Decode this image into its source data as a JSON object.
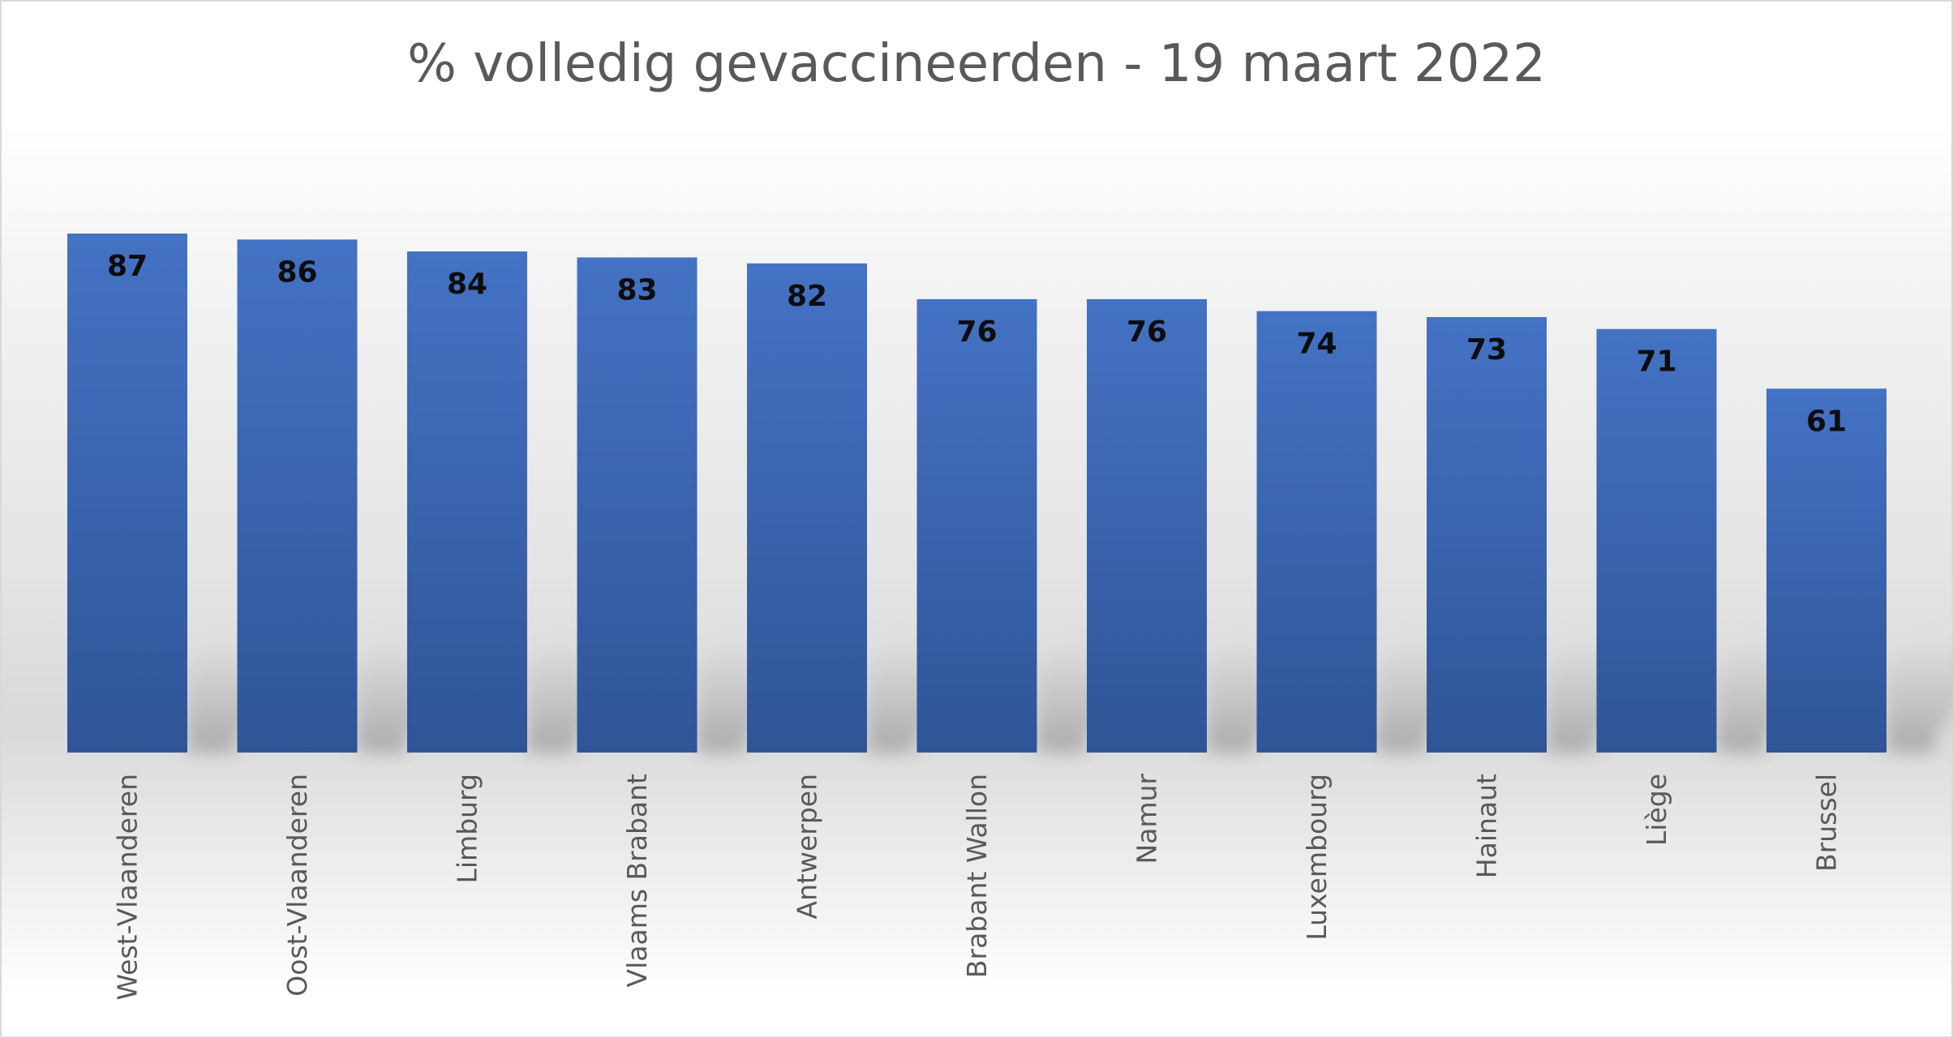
{
  "chart_data": {
    "type": "bar",
    "title": "% volledig gevaccineerden - 19 maart 2022",
    "xlabel": "",
    "ylabel": "",
    "categories": [
      "West-Vlaanderen",
      "Oost-Vlaanderen",
      "Limburg",
      "Vlaams Brabant",
      "Antwerpen",
      "Brabant Wallon",
      "Namur",
      "Luxembourg",
      "Hainaut",
      "Liège",
      "Brussel"
    ],
    "values": [
      87,
      86,
      84,
      83,
      82,
      76,
      76,
      74,
      73,
      71,
      61
    ],
    "ylim": [
      0,
      87
    ],
    "grid": false,
    "legend": "none",
    "data_labels": true,
    "colors": {
      "bar_top": "#4472c4",
      "bar_bottom": "#2f5597",
      "title": "#595959",
      "tick": "#595959",
      "data_label": "#0d0d0d"
    }
  }
}
